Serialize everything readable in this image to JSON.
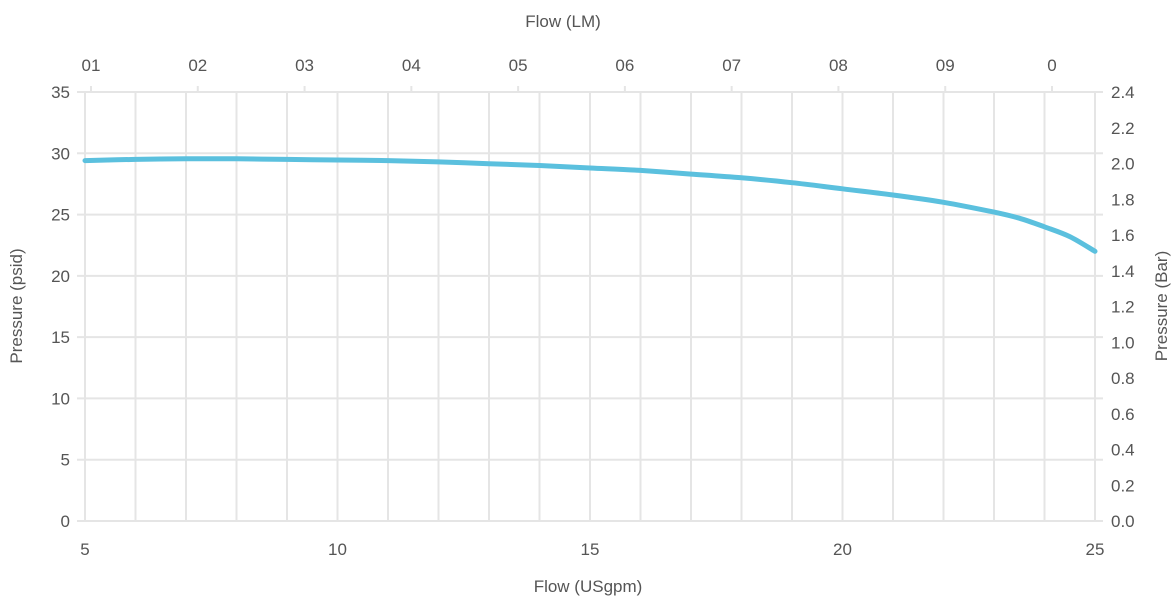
{
  "chart_data": {
    "type": "line",
    "x_axis_bottom": {
      "label": "Flow (USgpm)",
      "min": 5,
      "max": 25,
      "ticks": [
        "5",
        "10",
        "15",
        "20",
        "25"
      ]
    },
    "x_axis_top": {
      "label": "Flow (LM)",
      "ticks": [
        "01",
        "02",
        "03",
        "04",
        "05",
        "06",
        "07",
        "08",
        "09",
        "0"
      ]
    },
    "y_axis_left": {
      "label": "Pressure (psid)",
      "min": 0,
      "max": 35,
      "ticks": [
        "0",
        "5",
        "10",
        "15",
        "20",
        "25",
        "30",
        "35"
      ]
    },
    "y_axis_right": {
      "label": "Pressure (Bar)",
      "ticks": [
        "0.0",
        "0.2",
        "0.4",
        "0.6",
        "0.8",
        "1.0",
        "1.2",
        "1.4",
        "1.6",
        "1.8",
        "2.0",
        "2.2",
        "2.4"
      ]
    },
    "grid": true,
    "series": [
      {
        "color": "#5bc0de",
        "x": [
          5,
          6,
          7,
          8,
          9,
          10,
          11,
          12,
          13,
          14,
          15,
          16,
          17,
          18,
          19,
          20,
          21,
          22,
          23,
          23.5,
          24,
          24.5,
          25
        ],
        "y": [
          29.4,
          29.5,
          29.55,
          29.55,
          29.5,
          29.45,
          29.4,
          29.3,
          29.15,
          29.0,
          28.8,
          28.6,
          28.3,
          28.0,
          27.6,
          27.1,
          26.6,
          26.0,
          25.2,
          24.7,
          24.0,
          23.2,
          22.0
        ]
      }
    ]
  }
}
